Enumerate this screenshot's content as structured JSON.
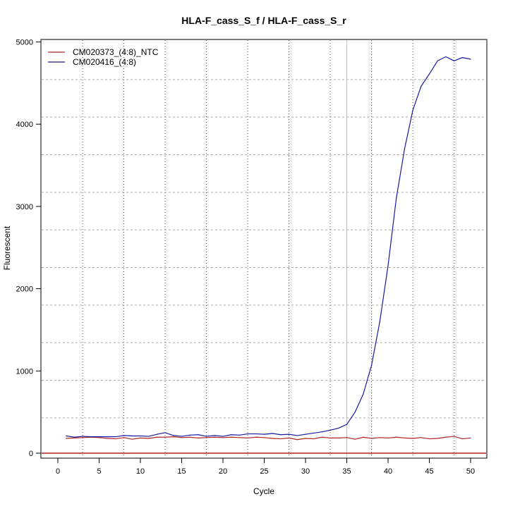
{
  "chart_data": {
    "type": "line",
    "title": "HLA-F_cass_S_f / HLA-F_cass_S_r",
    "xlabel": "Cycle",
    "ylabel": "Fluorescent",
    "xlim": [
      -2,
      52
    ],
    "ylim": [
      -60,
      5020
    ],
    "xticks": [
      0,
      5,
      10,
      15,
      20,
      25,
      30,
      35,
      40,
      45,
      50
    ],
    "yticks": [
      0,
      1000,
      2000,
      3000,
      4000,
      5000
    ],
    "grid": true,
    "legend_position": "top-left",
    "threshold_cycle": 35,
    "baseline_value": 0,
    "x": [
      1,
      2,
      3,
      4,
      5,
      6,
      7,
      8,
      9,
      10,
      11,
      12,
      13,
      14,
      15,
      16,
      17,
      18,
      19,
      20,
      21,
      22,
      23,
      24,
      25,
      26,
      27,
      28,
      29,
      30,
      31,
      32,
      33,
      34,
      35,
      36,
      37,
      38,
      39,
      40,
      41,
      42,
      43,
      44,
      45,
      46,
      47,
      48,
      49,
      50
    ],
    "series": [
      {
        "name": "CM020373_(4:8)_NTC",
        "color": "#b22222",
        "values": [
          180,
          185,
          190,
          195,
          190,
          180,
          175,
          190,
          170,
          185,
          180,
          195,
          195,
          200,
          190,
          195,
          185,
          190,
          195,
          190,
          195,
          190,
          185,
          195,
          190,
          180,
          175,
          185,
          165,
          180,
          175,
          195,
          185,
          185,
          190,
          170,
          195,
          180,
          190,
          185,
          195,
          185,
          180,
          190,
          175,
          180,
          195,
          205,
          175,
          185
        ]
      },
      {
        "name": "CM020416_(4:8)",
        "color": "#1a1aa0",
        "values": [
          210,
          195,
          205,
          200,
          200,
          200,
          200,
          215,
          210,
          210,
          205,
          230,
          250,
          215,
          205,
          220,
          225,
          205,
          215,
          205,
          225,
          220,
          235,
          235,
          230,
          240,
          225,
          230,
          215,
          230,
          245,
          260,
          280,
          305,
          350,
          500,
          720,
          1070,
          1600,
          2280,
          3100,
          3700,
          4170,
          4460,
          4610,
          4770,
          4820,
          4770,
          4810,
          4790
        ]
      }
    ]
  }
}
